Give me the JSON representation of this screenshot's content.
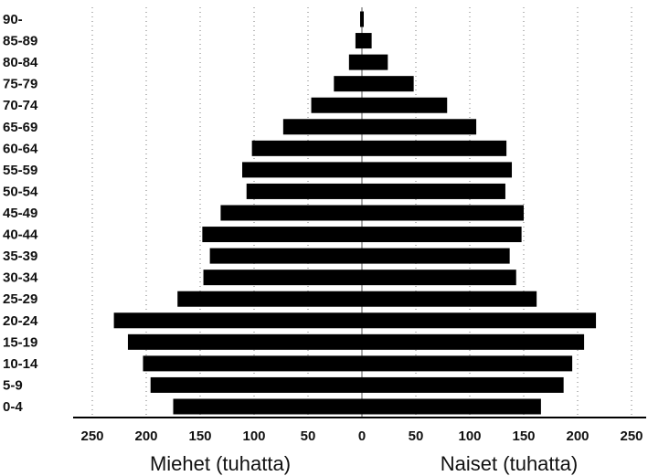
{
  "chart_data": {
    "type": "bar",
    "orientation": "horizontal",
    "layout": "population-pyramid",
    "categories": [
      "0-4",
      "5-9",
      "10-14",
      "15-19",
      "20-24",
      "25-29",
      "30-34",
      "35-39",
      "40-44",
      "45-49",
      "50-54",
      "55-59",
      "60-64",
      "65-69",
      "70-74",
      "75-79",
      "80-84",
      "85-89",
      "90-"
    ],
    "series": [
      {
        "name": "Miehet (tuhatta)",
        "side": "left",
        "color": "#000000",
        "values": [
          175,
          196,
          203,
          217,
          230,
          171,
          147,
          141,
          148,
          131,
          107,
          111,
          102,
          73,
          47,
          26,
          12,
          6,
          1
        ]
      },
      {
        "name": "Naiset (tuhatta)",
        "side": "right",
        "color": "#000000",
        "values": [
          166,
          187,
          195,
          206,
          217,
          162,
          143,
          137,
          148,
          150,
          133,
          139,
          134,
          106,
          79,
          48,
          24,
          9,
          1
        ]
      }
    ],
    "x_ticks_left": [
      "250",
      "200",
      "150",
      "100",
      "50",
      "0"
    ],
    "x_ticks_right": [
      "50",
      "100",
      "150",
      "200",
      "250"
    ],
    "x_tick_values_left": [
      250,
      200,
      150,
      100,
      50,
      0
    ],
    "x_tick_values_right": [
      50,
      100,
      150,
      200,
      250
    ],
    "xlim": [
      -250,
      250
    ],
    "xlabel_left": "Miehet (tuhatta)",
    "xlabel_right": "Naiset (tuhatta)",
    "grid": "vertical dotted",
    "title": ""
  }
}
